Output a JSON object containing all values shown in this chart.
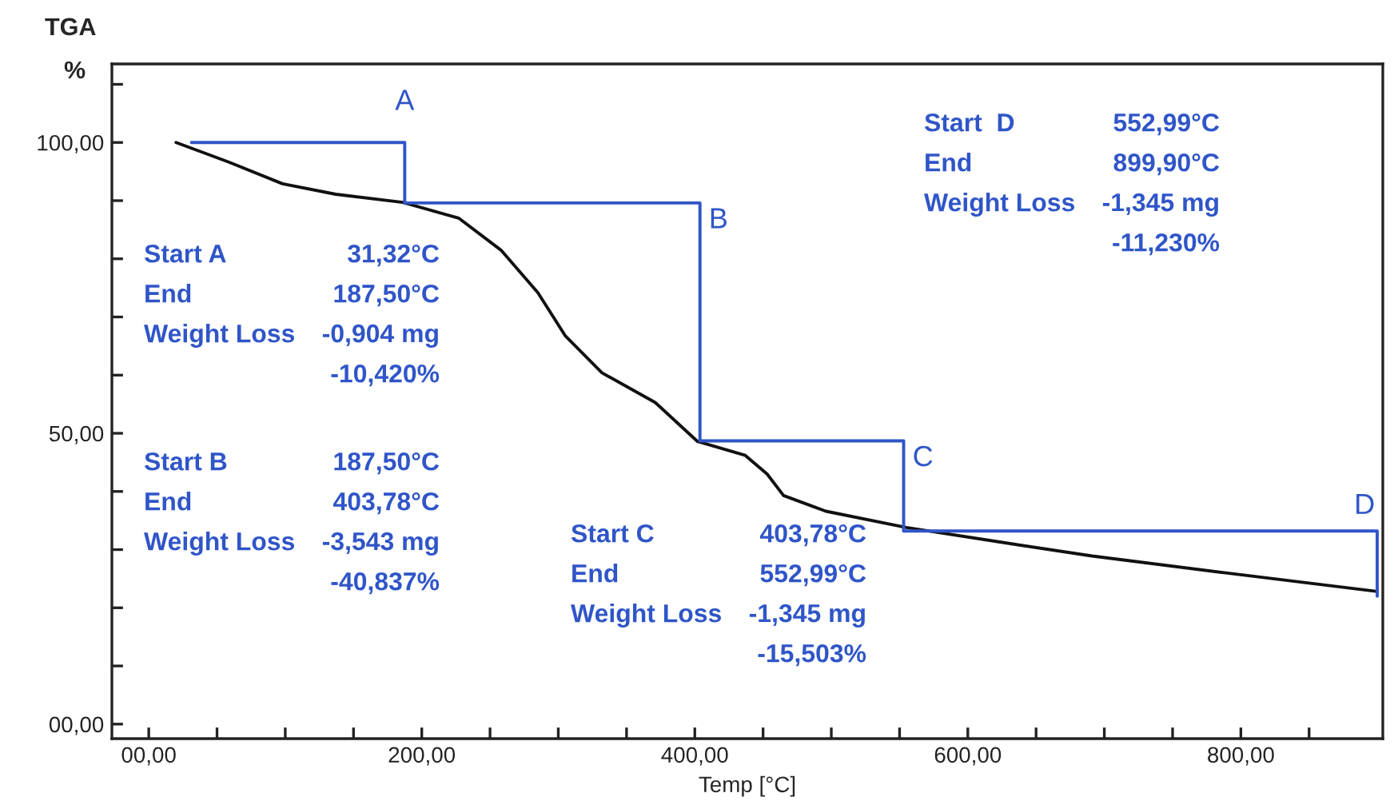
{
  "chart_data": {
    "type": "line",
    "title": "TGA",
    "xlabel": "Temp [°C]",
    "ylabel": "%",
    "xlim": [
      -27,
      904
    ],
    "ylim": [
      -2.5,
      113.5
    ],
    "xticks": [
      {
        "value": 0,
        "label": "00,00"
      },
      {
        "value": 50,
        "label": null
      },
      {
        "value": 100,
        "label": null
      },
      {
        "value": 150,
        "label": null
      },
      {
        "value": 200,
        "label": "200,00"
      },
      {
        "value": 250,
        "label": null
      },
      {
        "value": 300,
        "label": null
      },
      {
        "value": 350,
        "label": null
      },
      {
        "value": 400,
        "label": "400,00"
      },
      {
        "value": 450,
        "label": null
      },
      {
        "value": 500,
        "label": null
      },
      {
        "value": 550,
        "label": null
      },
      {
        "value": 600,
        "label": "600,00"
      },
      {
        "value": 650,
        "label": null
      },
      {
        "value": 700,
        "label": null
      },
      {
        "value": 750,
        "label": null
      },
      {
        "value": 800,
        "label": "800,00"
      },
      {
        "value": 850,
        "label": null
      }
    ],
    "yticks": [
      {
        "value": 0,
        "label": "00,00"
      },
      {
        "value": 10,
        "label": null
      },
      {
        "value": 20,
        "label": null
      },
      {
        "value": 30,
        "label": null
      },
      {
        "value": 40,
        "label": null
      },
      {
        "value": 50,
        "label": "50,00"
      },
      {
        "value": 60,
        "label": null
      },
      {
        "value": 70,
        "label": null
      },
      {
        "value": 80,
        "label": null
      },
      {
        "value": 90,
        "label": null
      },
      {
        "value": 100,
        "label": "100,00"
      },
      {
        "value": 110,
        "label": null
      }
    ],
    "grid": false,
    "legend": false,
    "series": [
      {
        "type": "line",
        "color": "#111111",
        "x": [
          20,
          59,
          98,
          137,
          186,
          227,
          258,
          285,
          305,
          332,
          371,
          402,
          437,
          453,
          465,
          496,
          555,
          632,
          691,
          789,
          900
        ],
        "values": [
          100,
          96.6,
          92.9,
          91.1,
          89.7,
          87,
          81.5,
          74.2,
          66.8,
          60.4,
          55.3,
          48.6,
          46.2,
          43,
          39.3,
          36.6,
          33.8,
          31,
          28.9,
          26,
          22.8
        ]
      },
      {
        "type": "line",
        "color": "#2f55c8",
        "x": [
          31.32,
          187.5,
          187.5
        ],
        "values": [
          100,
          100,
          89.6
        ]
      },
      {
        "type": "line",
        "color": "#2f55c8",
        "x": [
          187.5,
          403.78,
          403.78
        ],
        "values": [
          89.6,
          89.6,
          48.7
        ]
      },
      {
        "type": "line",
        "color": "#2f55c8",
        "x": [
          403.78,
          552.99,
          552.99
        ],
        "values": [
          48.7,
          48.7,
          33.2
        ]
      },
      {
        "type": "line",
        "color": "#2f55c8",
        "x": [
          552.99,
          899.9,
          899.9
        ],
        "values": [
          33.2,
          33.2,
          22.0
        ]
      }
    ],
    "annotations": [
      {
        "text": "A",
        "x": 187.5,
        "y": 100
      },
      {
        "text": "B",
        "x": 403.78,
        "y": 89.6
      },
      {
        "text": "C",
        "x": 552.99,
        "y": 48.7
      },
      {
        "text": "D",
        "x": 899.9,
        "y": 33.2
      },
      "Start A\t31,32°C\nEnd\t187,50°C\nWeight Loss\t-0,904 mg\n\t-10,420%",
      "Start B\t187,50°C\nEnd\t403,78°C\nWeight Loss\t-3,543 mg\n\t-40,837%",
      "Start C\t403,78°C\nEnd\t552,99°C\nWeight Loss\t-1,345 mg\n\t-15,503%",
      "Start  D\t552,99°C\nEnd\t899,90°C\nWeight Loss\t-1,345 mg\n\t-11,230%"
    ]
  }
}
